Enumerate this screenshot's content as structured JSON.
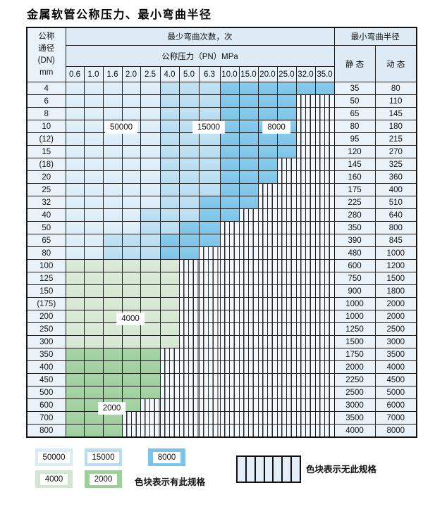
{
  "title": "金属软管公称压力、最小弯曲半径",
  "colors": {
    "c50000": "#d9ebf7",
    "c15000": "#b5dcf1",
    "c8000": "#7cc3e8",
    "c4000": "#d4e6d1",
    "c2000": "#9dcf9d",
    "chead": "#dcebf6",
    "cheadlight": "#e6f1f9",
    "clabel": "#e9f2f9",
    "chatchbg": "#f2f7fb",
    "chatchlegend": "#e4eef8"
  },
  "table": {
    "header": {
      "dn_lines": [
        "公称",
        "通径",
        "(DN)",
        "mm"
      ],
      "cycles_label": "最少弯曲次数，次",
      "radius_label": "最小弯曲半径",
      "pressure_label": "公称压力（PN）MPa",
      "pressure_cols": [
        "0.6",
        "1.0",
        "1.6",
        "2.0",
        "2.5",
        "4.0",
        "5.0",
        "6.3",
        "10.0",
        "15.0",
        "20.0",
        "25.0",
        "32.0",
        "35.0"
      ],
      "static_label": "静 态",
      "dynamic_label": "动 态"
    },
    "rows": [
      {
        "dn": "4",
        "c": [
          "50",
          "50",
          "50",
          "50",
          "50",
          "15",
          "15",
          "15",
          "8",
          "8",
          "8",
          "8",
          "8",
          "8"
        ],
        "s": "35",
        "d": "80"
      },
      {
        "dn": "6",
        "c": [
          "50",
          "50",
          "50",
          "50",
          "50",
          "15",
          "15",
          "15",
          "8",
          "8",
          "8",
          "8",
          "x",
          "x"
        ],
        "s": "50",
        "d": "110"
      },
      {
        "dn": "8",
        "c": [
          "50",
          "50",
          "50",
          "50",
          "50",
          "15",
          "15",
          "15",
          "8",
          "8",
          "8",
          "8",
          "x",
          "x"
        ],
        "s": "65",
        "d": "145"
      },
      {
        "dn": "10",
        "c": [
          "50",
          "50",
          "50",
          "50",
          "50",
          "15",
          "15",
          "15",
          "8",
          "8",
          "8",
          "8",
          "x",
          "x"
        ],
        "s": "80",
        "d": "180"
      },
      {
        "dn": "(12)",
        "c": [
          "50",
          "50",
          "50",
          "50",
          "50",
          "15",
          "15",
          "15",
          "8",
          "8",
          "8",
          "8",
          "x",
          "x"
        ],
        "s": "95",
        "d": "215"
      },
      {
        "dn": "15",
        "c": [
          "50",
          "50",
          "50",
          "50",
          "50",
          "15",
          "15",
          "15",
          "8",
          "8",
          "8",
          "8",
          "x",
          "x"
        ],
        "s": "120",
        "d": "270"
      },
      {
        "dn": "(18)",
        "c": [
          "50",
          "50",
          "50",
          "50",
          "50",
          "15",
          "15",
          "15",
          "8",
          "8",
          "8",
          "x",
          "x",
          "x"
        ],
        "s": "145",
        "d": "325"
      },
      {
        "dn": "20",
        "c": [
          "50",
          "50",
          "50",
          "50",
          "50",
          "15",
          "15",
          "15",
          "8",
          "8",
          "8",
          "x",
          "x",
          "x"
        ],
        "s": "160",
        "d": "360"
      },
      {
        "dn": "25",
        "c": [
          "50",
          "50",
          "50",
          "50",
          "50",
          "15",
          "15",
          "15",
          "8",
          "8",
          "x",
          "x",
          "x",
          "x"
        ],
        "s": "175",
        "d": "400"
      },
      {
        "dn": "32",
        "c": [
          "50",
          "50",
          "50",
          "50",
          "50",
          "15",
          "15",
          "8",
          "8",
          "8",
          "x",
          "x",
          "x",
          "x"
        ],
        "s": "225",
        "d": "510"
      },
      {
        "dn": "40",
        "c": [
          "50",
          "50",
          "50",
          "50",
          "15",
          "15",
          "15",
          "8",
          "8",
          "x",
          "x",
          "x",
          "x",
          "x"
        ],
        "s": "280",
        "d": "640"
      },
      {
        "dn": "50",
        "c": [
          "50",
          "50",
          "50",
          "50",
          "15",
          "15",
          "8",
          "8",
          "x",
          "x",
          "x",
          "x",
          "x",
          "x"
        ],
        "s": "350",
        "d": "800"
      },
      {
        "dn": "65",
        "c": [
          "50",
          "50",
          "15",
          "15",
          "15",
          "8",
          "8",
          "8",
          "x",
          "x",
          "x",
          "x",
          "x",
          "x"
        ],
        "s": "390",
        "d": "845"
      },
      {
        "dn": "80",
        "c": [
          "50",
          "50",
          "15",
          "15",
          "15",
          "8",
          "8",
          "x",
          "x",
          "x",
          "x",
          "x",
          "x",
          "x"
        ],
        "s": "480",
        "d": "1000"
      },
      {
        "dn": "100",
        "c": [
          "4",
          "4",
          "4",
          "4",
          "4",
          "4",
          "x",
          "x",
          "x",
          "x",
          "x",
          "x",
          "x",
          "x"
        ],
        "s": "600",
        "d": "1200"
      },
      {
        "dn": "125",
        "c": [
          "4",
          "4",
          "4",
          "4",
          "4",
          "4",
          "x",
          "x",
          "x",
          "x",
          "x",
          "x",
          "x",
          "x"
        ],
        "s": "750",
        "d": "1500"
      },
      {
        "dn": "150",
        "c": [
          "4",
          "4",
          "4",
          "4",
          "4",
          "4",
          "x",
          "x",
          "x",
          "x",
          "x",
          "x",
          "x",
          "x"
        ],
        "s": "900",
        "d": "1800"
      },
      {
        "dn": "(175)",
        "c": [
          "4",
          "4",
          "4",
          "4",
          "4",
          "4",
          "x",
          "x",
          "x",
          "x",
          "x",
          "x",
          "x",
          "x"
        ],
        "s": "1000",
        "d": "2000"
      },
      {
        "dn": "200",
        "c": [
          "4",
          "4",
          "4",
          "4",
          "4",
          "4",
          "x",
          "x",
          "x",
          "x",
          "x",
          "x",
          "x",
          "x"
        ],
        "s": "1000",
        "d": "2000"
      },
      {
        "dn": "250",
        "c": [
          "4",
          "4",
          "4",
          "4",
          "4",
          "4",
          "x",
          "x",
          "x",
          "x",
          "x",
          "x",
          "x",
          "x"
        ],
        "s": "1250",
        "d": "2500"
      },
      {
        "dn": "300",
        "c": [
          "4",
          "4",
          "4",
          "4",
          "4",
          "4",
          "x",
          "x",
          "x",
          "x",
          "x",
          "x",
          "x",
          "x"
        ],
        "s": "1500",
        "d": "3000"
      },
      {
        "dn": "350",
        "c": [
          "2",
          "2",
          "2",
          "2",
          "2",
          "x",
          "x",
          "x",
          "x",
          "x",
          "x",
          "x",
          "x",
          "x"
        ],
        "s": "1750",
        "d": "3500"
      },
      {
        "dn": "400",
        "c": [
          "2",
          "2",
          "2",
          "2",
          "2",
          "x",
          "x",
          "x",
          "x",
          "x",
          "x",
          "x",
          "x",
          "x"
        ],
        "s": "2000",
        "d": "4000"
      },
      {
        "dn": "450",
        "c": [
          "2",
          "2",
          "2",
          "2",
          "2",
          "x",
          "x",
          "x",
          "x",
          "x",
          "x",
          "x",
          "x",
          "x"
        ],
        "s": "2250",
        "d": "4500"
      },
      {
        "dn": "500",
        "c": [
          "2",
          "2",
          "2",
          "2",
          "2",
          "x",
          "x",
          "x",
          "x",
          "x",
          "x",
          "x",
          "x",
          "x"
        ],
        "s": "2500",
        "d": "5000"
      },
      {
        "dn": "600",
        "c": [
          "2",
          "2",
          "2",
          "2",
          "x",
          "x",
          "x",
          "x",
          "x",
          "x",
          "x",
          "x",
          "x",
          "x"
        ],
        "s": "3000",
        "d": "6000"
      },
      {
        "dn": "700",
        "c": [
          "2",
          "2",
          "2",
          "x",
          "x",
          "x",
          "x",
          "x",
          "x",
          "x",
          "x",
          "x",
          "x",
          "x"
        ],
        "s": "3500",
        "d": "7000"
      },
      {
        "dn": "800",
        "c": [
          "2",
          "2",
          "2",
          "x",
          "x",
          "x",
          "x",
          "x",
          "x",
          "x",
          "x",
          "x",
          "x",
          "x"
        ],
        "s": "4000",
        "d": "8000"
      }
    ]
  },
  "overlays": [
    {
      "text": "50000",
      "dn": "10",
      "col": "2.0",
      "mode": "edge"
    },
    {
      "text": "15000",
      "dn": "10",
      "col": "6.3",
      "mode": "center"
    },
    {
      "text": "8000",
      "dn": "10",
      "col": "25.0",
      "mode": "edge"
    },
    {
      "text": "4000",
      "dn": "200",
      "col": "2.0",
      "mode": "center"
    },
    {
      "text": "2000",
      "dn": "600",
      "col": "1.6",
      "mode": "center"
    }
  ],
  "legend": {
    "swatches": [
      {
        "value": "50000",
        "key": "50000"
      },
      {
        "value": "15000",
        "key": "15000"
      },
      {
        "value": "8000",
        "key": "8000"
      },
      {
        "value": "4000",
        "key": "4000"
      },
      {
        "value": "2000",
        "key": "2000"
      }
    ],
    "available_text": "色块表示有此规格",
    "unavailable_text": "色块表示无此规格"
  }
}
